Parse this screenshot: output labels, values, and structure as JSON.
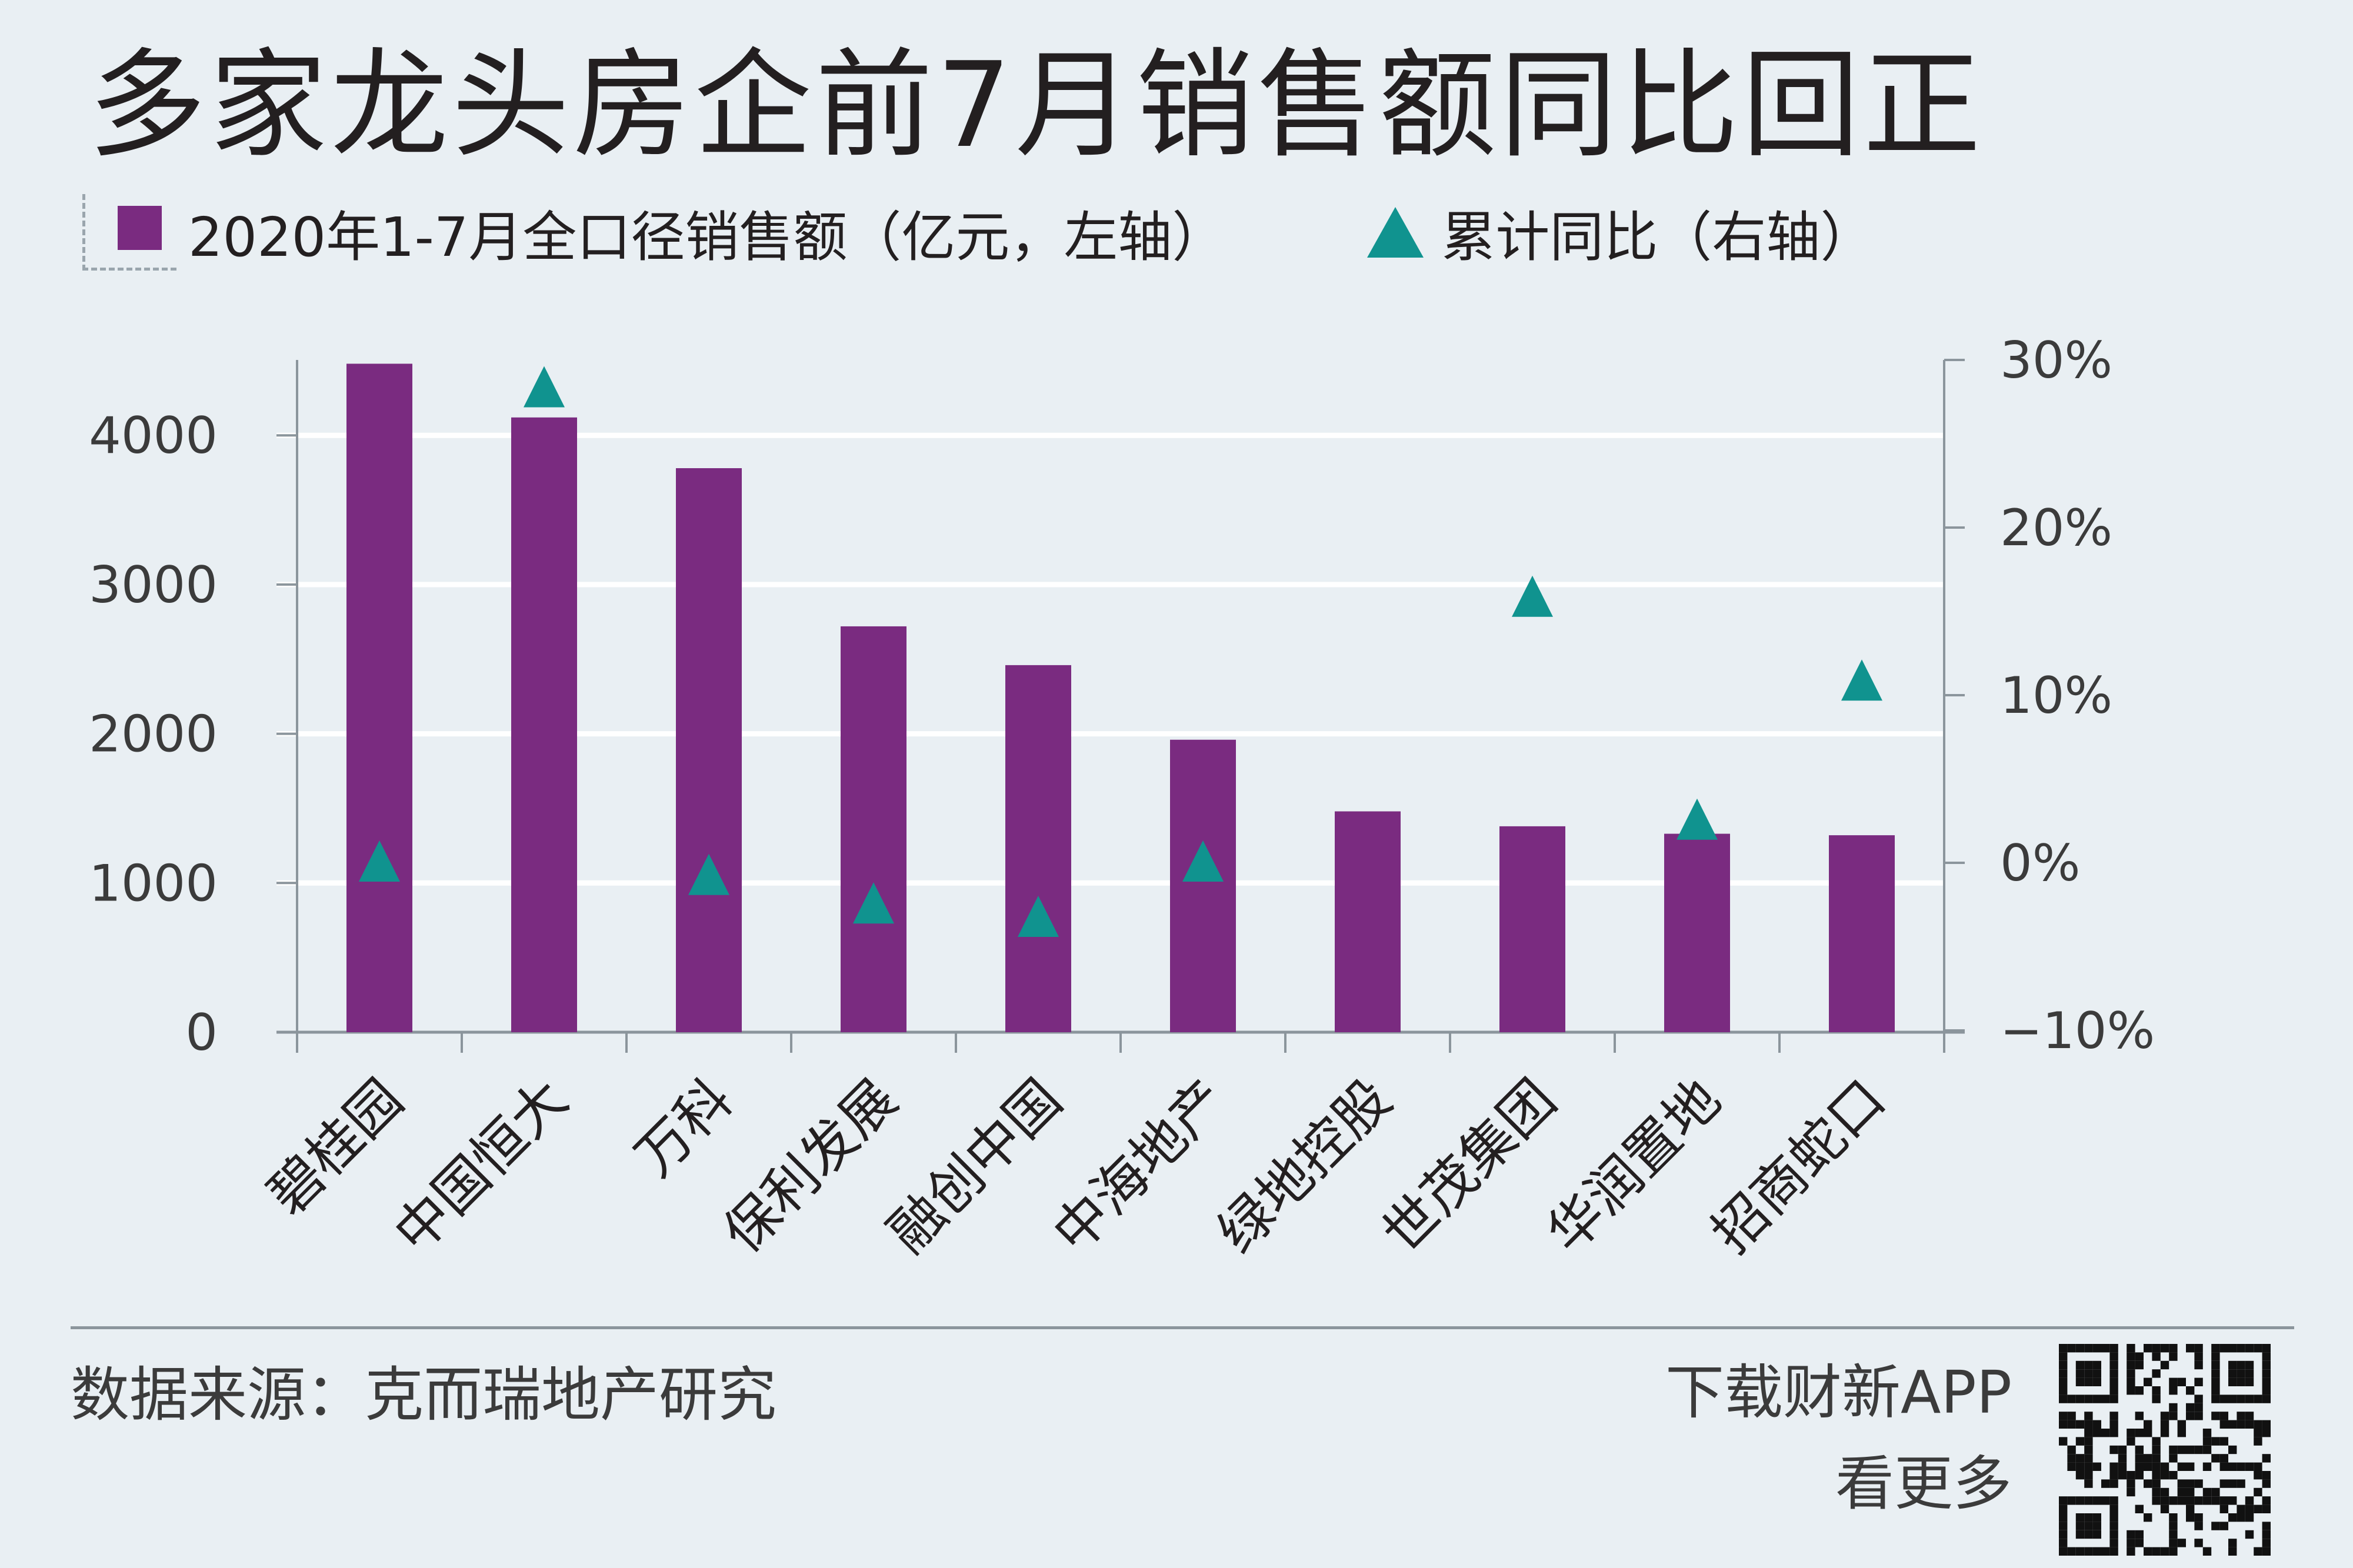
{
  "title": "多家龙头房企前7月销售额同比回正",
  "legend": {
    "bar_label": "2020年1-7月全口径销售额（亿元，左轴）",
    "triangle_label": "累计同比（右轴）"
  },
  "colors": {
    "bar": "#7a2b80",
    "triangle": "#10938f",
    "background": "#e9eff3",
    "gridline": "#ffffff",
    "axis": "#8b959c"
  },
  "chart_data": {
    "type": "bar",
    "categories": [
      "碧桂园",
      "中国恒大",
      "万科",
      "保利发展",
      "融创中国",
      "中海地产",
      "绿地控股",
      "世茂集团",
      "华润置地",
      "招商蛇口"
    ],
    "series": [
      {
        "name": "2020年1-7月全口径销售额（亿元，左轴）",
        "axis": "left",
        "type": "bar",
        "values": [
          4480,
          4120,
          3780,
          2720,
          2460,
          1960,
          1480,
          1380,
          1330,
          1320
        ]
      },
      {
        "name": "累计同比（右轴）",
        "axis": "right",
        "type": "scatter",
        "marker": "triangle",
        "values": [
          0.0,
          28.3,
          -0.8,
          -2.5,
          -3.3,
          0.0,
          null,
          15.8,
          2.5,
          10.8
        ]
      }
    ],
    "y_left": {
      "lim": [
        0,
        4500
      ],
      "ticks": [
        0,
        1000,
        2000,
        3000,
        4000
      ],
      "tick_labels": [
        "0",
        "1000",
        "2000",
        "3000",
        "4000"
      ]
    },
    "y_right": {
      "lim": [
        -10,
        30
      ],
      "ticks": [
        -10,
        0,
        10,
        20,
        30
      ],
      "tick_labels": [
        "−10%",
        "0%",
        "10%",
        "20%",
        "30%"
      ]
    },
    "grid": true,
    "legend_position": "top-left"
  },
  "footer": {
    "source": "数据来源：克而瑞地产研究",
    "app_line1": "下载财新APP",
    "app_line2": "看更多"
  }
}
